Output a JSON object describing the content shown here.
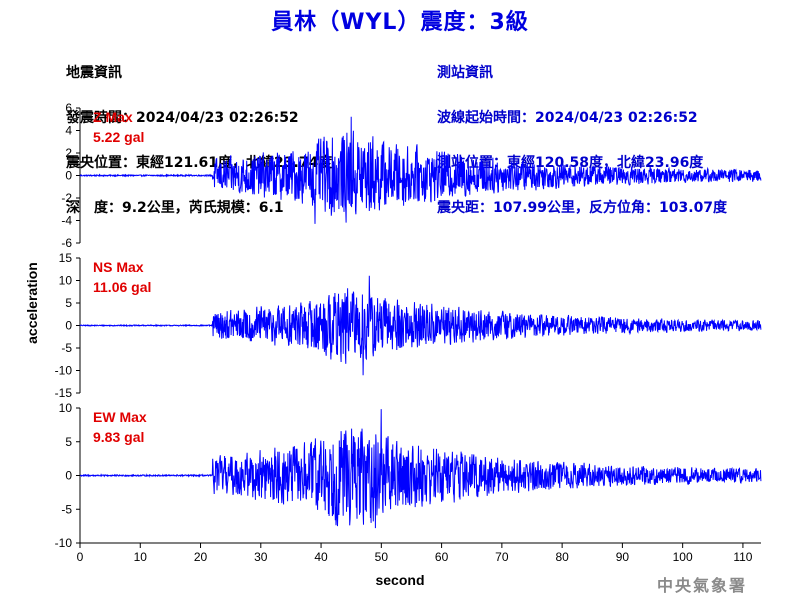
{
  "title": "員林（WYL）震度：3級",
  "quake_info": {
    "heading": "地震資訊",
    "time": "發震時間：2024/04/23 02:26:52",
    "epicenter": "震央位置：東經121.61度，北緯23.74度",
    "depth_magnitude": "深　度：9.2公里，芮氏規模：6.1"
  },
  "station_info": {
    "heading": "測站資訊",
    "wave_start": "波線起始時間：2024/04/23 02:26:52",
    "location": "測站位置：東經120.58度，北緯23.96度",
    "distance": "震央距：107.99公里，反方位角：103.07度"
  },
  "agency": "中央氣象署",
  "colors": {
    "title": "#0000e0",
    "trace": "#0000ff",
    "max_label": "#e00000",
    "station": "#0000cc",
    "agency": "#8a8a8a"
  },
  "chart_data": {
    "type": "line",
    "xlabel": "second",
    "ylabel": "acceleration",
    "xlim": [
      0,
      113
    ],
    "x_ticks": [
      0,
      10,
      20,
      30,
      40,
      50,
      60,
      70,
      80,
      90,
      100,
      110
    ],
    "panels": [
      {
        "component": "Z",
        "max_label": "Z Max",
        "max_value": "5.22 gal",
        "peak": 5.22,
        "ylim": [
          -6,
          6
        ],
        "y_ticks": [
          6,
          4,
          2,
          0,
          -2,
          -4,
          -6
        ],
        "onset_s": 22,
        "peak_time_s": 45,
        "min_value": -4.3,
        "min_time_s": 39
      },
      {
        "component": "NS",
        "max_label": "NS Max",
        "max_value": "11.06 gal",
        "peak": 11.06,
        "ylim": [
          -15,
          15
        ],
        "y_ticks": [
          15,
          10,
          5,
          0,
          -5,
          -10,
          -15
        ],
        "onset_s": 22,
        "peak_time_s": 48,
        "min_value": -11.06,
        "min_time_s": 47
      },
      {
        "component": "EW",
        "max_label": "EW Max",
        "max_value": "9.83 gal",
        "peak": 9.83,
        "ylim": [
          -10,
          10
        ],
        "y_ticks": [
          10,
          5,
          0,
          -5,
          -10
        ],
        "onset_s": 22,
        "peak_time_s": 50,
        "min_value": -7.8,
        "min_time_s": 49
      }
    ]
  }
}
